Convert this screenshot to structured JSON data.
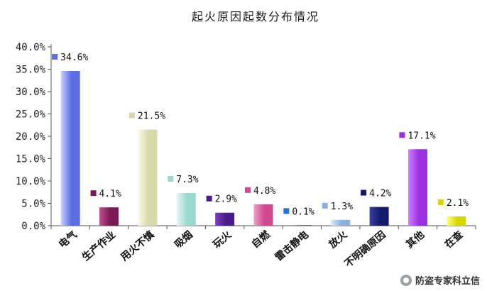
{
  "chart_data": {
    "type": "bar",
    "title": "起火原因起数分布情况",
    "xlabel": "",
    "ylabel": "",
    "ylim": [
      0,
      40
    ],
    "yticks": [
      "0.0%",
      "5.0%",
      "10.0%",
      "15.0%",
      "20.0%",
      "25.0%",
      "30.0%",
      "35.0%",
      "40.0%"
    ],
    "grid": false,
    "categories": [
      "电气",
      "生产作业",
      "用火不慎",
      "吸烟",
      "玩火",
      "自燃",
      "雷击静电",
      "放火",
      "不明确原因",
      "其他",
      "在查"
    ],
    "values": [
      34.6,
      4.1,
      21.5,
      7.3,
      2.9,
      4.8,
      0.1,
      1.3,
      4.2,
      17.1,
      2.1
    ],
    "labels": [
      "34.6%",
      "4.1%",
      "21.5%",
      "7.3%",
      "2.9%",
      "4.8%",
      "0.1%",
      "1.3%",
      "4.2%",
      "17.1%",
      "2.1%"
    ],
    "colors": [
      [
        "#5a6ee0",
        "#c8d0ff"
      ],
      [
        "#7a1a55",
        "#c0508a"
      ],
      [
        "#d8d8a8",
        "#fbfbe8"
      ],
      [
        "#9ad8d0",
        "#e8f8f5"
      ],
      [
        "#4a1a8a",
        "#8040c0"
      ],
      [
        "#d04890",
        "#f0a0c8"
      ],
      [
        "#2a70d0",
        "#80b0f0"
      ],
      [
        "#8ab0e0",
        "#dde8f8"
      ],
      [
        "#141a6a",
        "#3a40a0"
      ],
      [
        "#9a30e0",
        "#d080ff"
      ],
      [
        "#d8d800",
        "#ffff80"
      ]
    ]
  },
  "watermark": "防盗专家科立信"
}
